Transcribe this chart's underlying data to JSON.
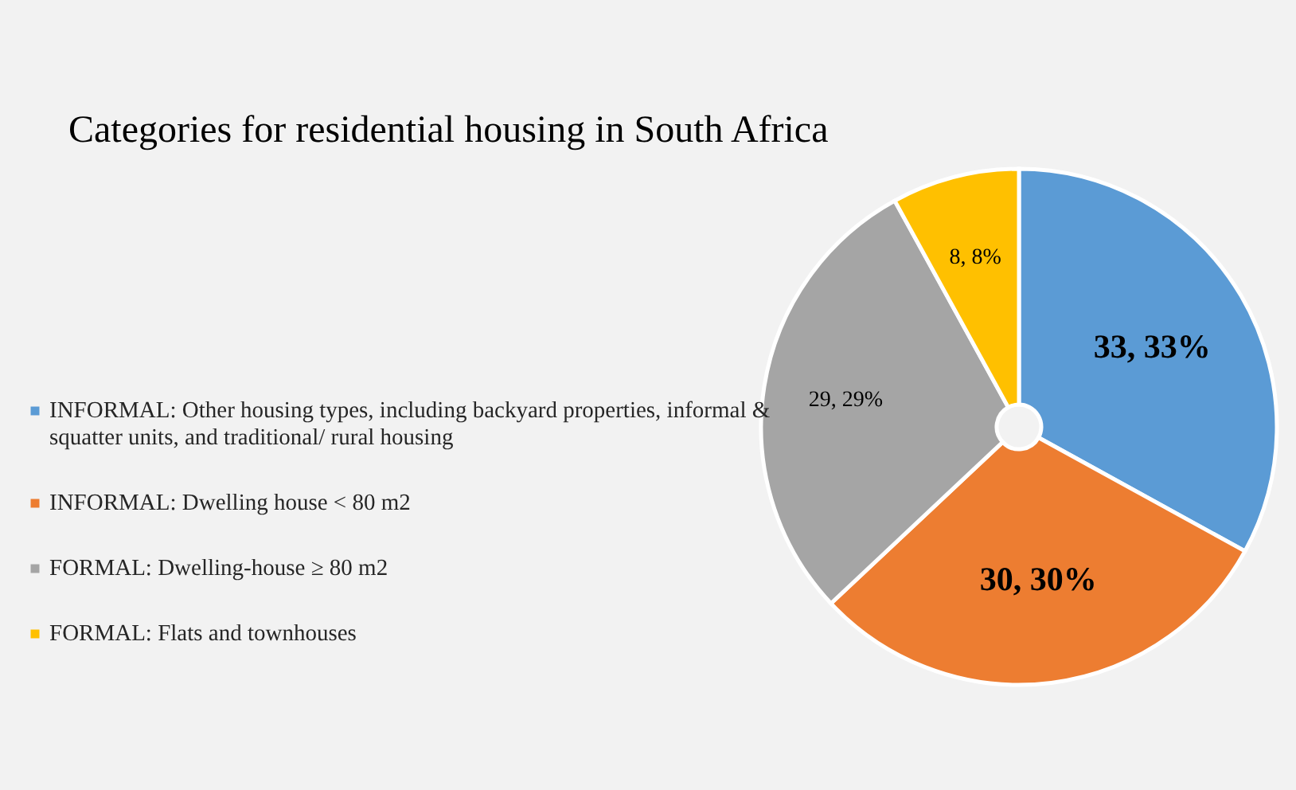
{
  "chart_data": {
    "type": "pie",
    "title": "Categories  for residential  housing  in South Africa",
    "categories": [
      "INFORMAL: Other housing types, including backyard properties, informal & squatter units, and traditional/ rural housing",
      "INFORMAL: Dwelling house < 80 m2",
      "FORMAL: Dwelling-house  ≥ 80 m2",
      "FORMAL: Flats and townhouses"
    ],
    "values": [
      33,
      30,
      29,
      8
    ],
    "colors": [
      "#5b9bd5",
      "#ed7d31",
      "#a5a5a5",
      "#ffc000"
    ],
    "value_labels": [
      "33, 33%",
      "30, 30%",
      "29, 29%",
      "8, 8%"
    ],
    "legend": "left"
  }
}
